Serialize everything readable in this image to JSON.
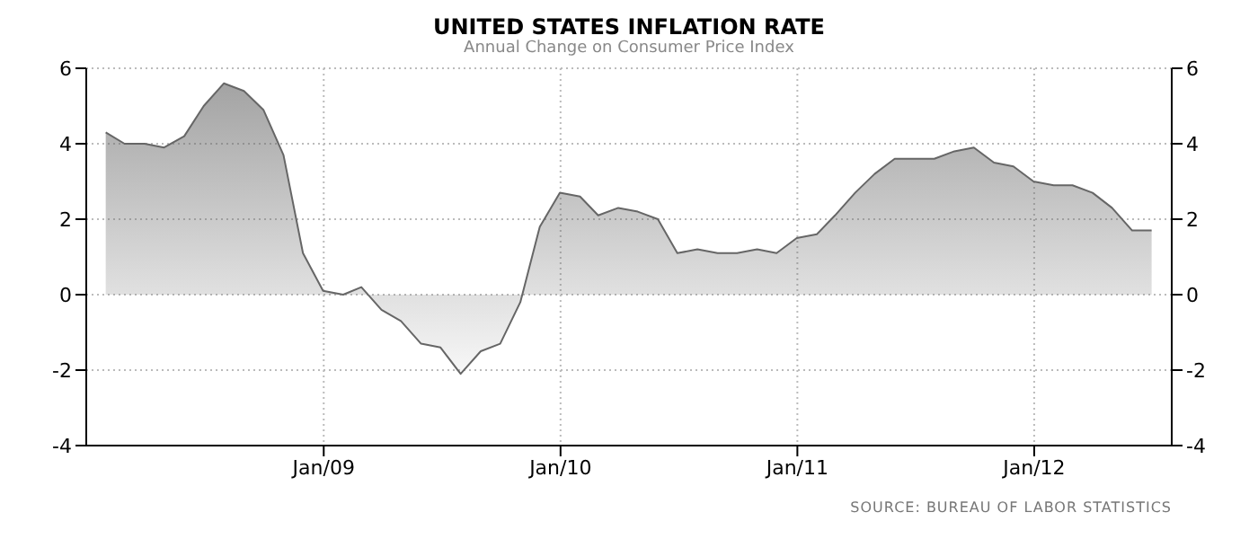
{
  "chart_data": {
    "type": "area",
    "title": "UNITED STATES INFLATION RATE",
    "subtitle": "Annual Change on Consumer Price Index",
    "x": [
      "2008-01-31",
      "2008-02-29",
      "2008-03-31",
      "2008-04-30",
      "2008-05-31",
      "2008-06-30",
      "2008-07-31",
      "2008-08-31",
      "2008-09-30",
      "2008-10-31",
      "2008-11-30",
      "2008-12-31",
      "2009-01-31",
      "2009-02-28",
      "2009-03-31",
      "2009-04-30",
      "2009-05-31",
      "2009-06-30",
      "2009-07-31",
      "2009-08-31",
      "2009-09-30",
      "2009-10-31",
      "2009-11-30",
      "2009-12-31",
      "2010-01-31",
      "2010-02-28",
      "2010-03-31",
      "2010-04-30",
      "2010-05-31",
      "2010-06-30",
      "2010-07-31",
      "2010-08-31",
      "2010-09-30",
      "2010-10-31",
      "2010-11-30",
      "2010-12-31",
      "2011-01-31",
      "2011-02-28",
      "2011-03-31",
      "2011-04-30",
      "2011-05-31",
      "2011-06-30",
      "2011-07-31",
      "2011-08-31",
      "2011-09-30",
      "2011-10-31",
      "2011-11-30",
      "2011-12-31",
      "2012-01-31",
      "2012-02-29",
      "2012-03-31",
      "2012-04-30",
      "2012-05-31",
      "2012-06-30"
    ],
    "series": [
      {
        "color": "#666666",
        "values": [
          4.3,
          4.0,
          4.0,
          3.9,
          4.2,
          5.0,
          5.6,
          5.4,
          4.9,
          3.7,
          1.1,
          0.1,
          0.0,
          0.2,
          -0.4,
          -0.7,
          -1.3,
          -1.4,
          -2.1,
          -1.5,
          -1.3,
          -0.2,
          1.8,
          2.7,
          2.6,
          2.1,
          2.3,
          2.2,
          2.0,
          1.1,
          1.2,
          1.1,
          1.1,
          1.2,
          1.1,
          1.5,
          1.6,
          2.1,
          2.7,
          3.2,
          3.6,
          3.6,
          3.6,
          3.8,
          3.9,
          3.5,
          3.4,
          3.0,
          2.9,
          2.9,
          2.7,
          2.3,
          1.7,
          1.7
        ]
      }
    ],
    "xlim": [
      "2008-01-01",
      "2012-07-31"
    ],
    "xticks": [
      {
        "value": "2009-01-01",
        "label": "Jan/09"
      },
      {
        "value": "2010-01-01",
        "label": "Jan/10"
      },
      {
        "value": "2011-01-01",
        "label": "Jan/11"
      },
      {
        "value": "2012-01-01",
        "label": "Jan/12"
      }
    ],
    "ylim": [
      -4,
      6
    ],
    "yticks": [
      -4,
      -2,
      0,
      2,
      4,
      6
    ],
    "y2lim": [
      -4,
      6
    ],
    "y2ticks": [
      -4,
      -2,
      0,
      2,
      4,
      6
    ],
    "grid": true,
    "legend": false,
    "annotations": [
      "SOURCE: BUREAU OF LABOR STATISTICS"
    ]
  }
}
